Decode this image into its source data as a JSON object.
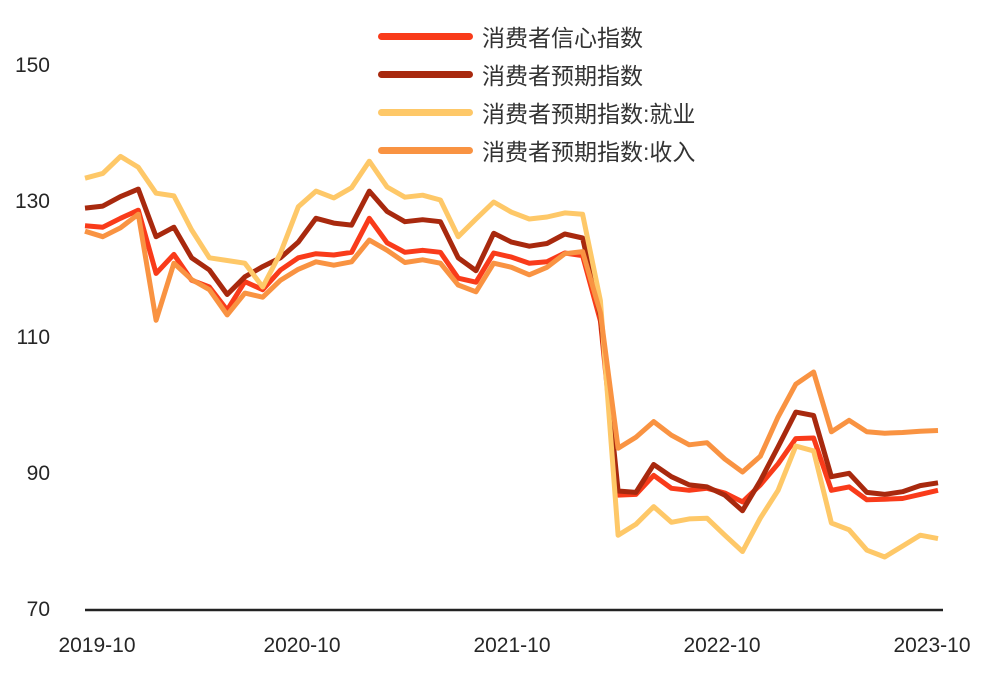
{
  "chart_data": {
    "type": "line",
    "title": "",
    "xlabel": "",
    "ylabel": "",
    "ylim": [
      70,
      150
    ],
    "grid": false,
    "legend_position": "top-center",
    "background_color": "#ffffff",
    "axis_line_color": "#222222",
    "tick_label_color": "#262626",
    "y_ticks": [
      150,
      130,
      110,
      90,
      70
    ],
    "x_tick_labels": [
      "2019-10",
      "2020-10",
      "2021-10",
      "2022-10",
      "2023-10"
    ],
    "x": [
      "2019-10",
      "2019-11",
      "2019-12",
      "2020-01",
      "2020-02",
      "2020-03",
      "2020-04",
      "2020-05",
      "2020-06",
      "2020-07",
      "2020-08",
      "2020-09",
      "2020-10",
      "2020-11",
      "2020-12",
      "2021-01",
      "2021-02",
      "2021-03",
      "2021-04",
      "2021-05",
      "2021-06",
      "2021-07",
      "2021-08",
      "2021-09",
      "2021-10",
      "2021-11",
      "2021-12",
      "2022-01",
      "2022-02",
      "2022-03",
      "2022-04",
      "2022-05",
      "2022-06",
      "2022-07",
      "2022-08",
      "2022-09",
      "2022-10",
      "2022-11",
      "2022-12",
      "2023-01",
      "2023-02",
      "2023-03",
      "2023-04",
      "2023-05",
      "2023-06",
      "2023-07",
      "2023-08",
      "2023-09",
      "2023-10"
    ],
    "series": [
      {
        "key": "cci",
        "name": "消费者信心指数",
        "color": "#F93B1A",
        "values": [
          126.5,
          126.3,
          127.6,
          128.8,
          119.5,
          122.3,
          118.5,
          117.5,
          114.1,
          118.3,
          117.1,
          120.0,
          121.8,
          122.4,
          122.2,
          122.6,
          127.6,
          124.0,
          122.6,
          122.9,
          122.6,
          118.8,
          118.2,
          122.5,
          121.9,
          121.0,
          121.2,
          122.5,
          122.1,
          112.5,
          86.9,
          87.0,
          89.8,
          87.9,
          87.6,
          87.9,
          87.2,
          85.9,
          88.4,
          91.5,
          95.2,
          95.3,
          87.6,
          88.1,
          86.2,
          86.3,
          86.4,
          87.0,
          87.6
        ]
      },
      {
        "key": "expectation",
        "name": "消费者预期指数",
        "color": "#A8290E",
        "values": [
          129.1,
          129.4,
          130.8,
          131.9,
          124.9,
          126.3,
          121.8,
          120.0,
          116.4,
          119.0,
          120.5,
          121.8,
          124.1,
          127.6,
          126.9,
          126.6,
          131.6,
          128.6,
          127.1,
          127.4,
          127.1,
          121.8,
          119.9,
          125.4,
          124.1,
          123.5,
          123.9,
          125.3,
          124.7,
          113.3,
          87.5,
          87.3,
          91.4,
          89.6,
          88.4,
          88.1,
          86.9,
          84.6,
          89.0,
          94.0,
          99.1,
          98.6,
          89.6,
          90.1,
          87.3,
          87.0,
          87.4,
          88.3,
          88.7
        ]
      },
      {
        "key": "expectation-employment",
        "name": "消费者预期指数:就业",
        "color": "#FEC868",
        "values": [
          133.5,
          134.2,
          136.7,
          135.1,
          131.3,
          130.9,
          125.9,
          121.8,
          121.4,
          121.0,
          117.5,
          122.5,
          129.3,
          131.6,
          130.6,
          132.1,
          136.0,
          132.2,
          130.7,
          131.0,
          130.3,
          124.9,
          127.5,
          130.0,
          128.5,
          127.5,
          127.8,
          128.4,
          128.2,
          115.5,
          81.0,
          82.6,
          85.2,
          82.9,
          83.4,
          83.5,
          81.0,
          78.6,
          83.5,
          87.6,
          94.1,
          93.4,
          82.8,
          81.8,
          78.8,
          77.8,
          79.4,
          81.0,
          80.5
        ]
      },
      {
        "key": "expectation-income",
        "name": "消费者预期指数:收入",
        "color": "#F99342",
        "values": [
          125.7,
          124.9,
          126.2,
          128.2,
          112.6,
          121.0,
          118.6,
          117.1,
          113.4,
          116.6,
          116.0,
          118.5,
          120.1,
          121.2,
          120.7,
          121.2,
          124.4,
          122.9,
          121.1,
          121.5,
          121.0,
          117.8,
          116.8,
          121.0,
          120.4,
          119.3,
          120.4,
          122.4,
          122.7,
          113.7,
          93.8,
          95.4,
          97.7,
          95.7,
          94.3,
          94.6,
          92.2,
          90.3,
          92.6,
          98.4,
          103.2,
          105.0,
          96.2,
          97.9,
          96.2,
          96.0,
          96.1,
          96.3,
          96.4
        ]
      }
    ]
  }
}
